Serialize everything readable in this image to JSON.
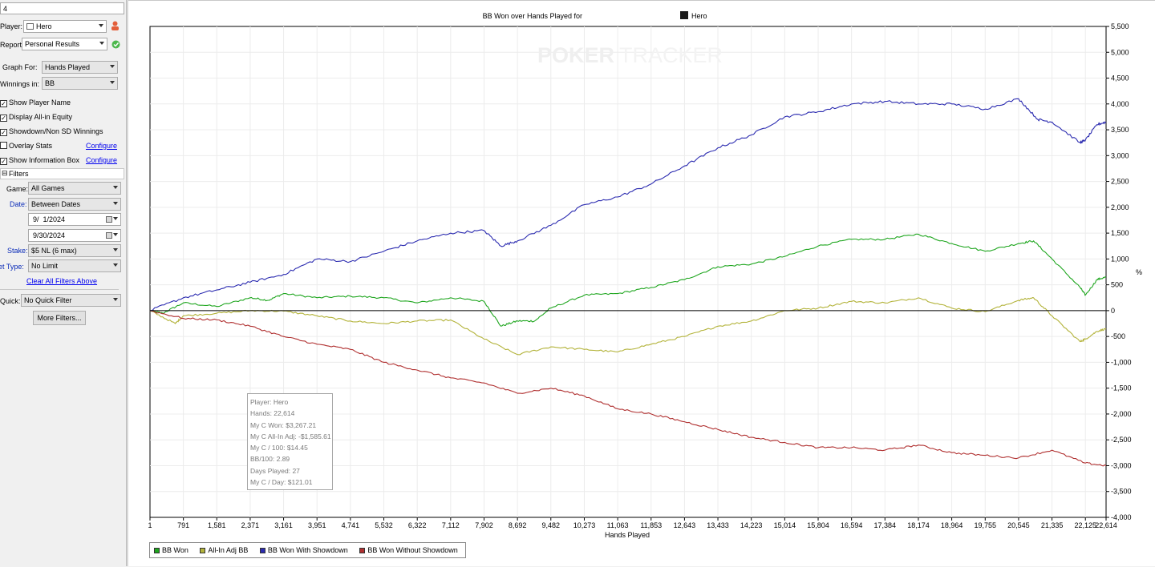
{
  "panel": {
    "search_value": "4",
    "player_label": "Player:",
    "player_value": "Hero",
    "report_label": "Report:",
    "report_value": "Personal Results",
    "graph_for_label": "Graph For:",
    "graph_for_value": "Hands Played",
    "winnings_in_label": "Winnings in:",
    "winnings_in_value": "BB",
    "checkboxes": [
      {
        "label": "Show Player Name",
        "checked": true
      },
      {
        "label": "Display All-in Equity",
        "checked": true
      },
      {
        "label": "Showdown/Non SD Winnings",
        "checked": true
      },
      {
        "label": "Overlay Stats",
        "checked": false
      },
      {
        "label": "Show Information Box",
        "checked": true
      }
    ],
    "configure_link": "Configure",
    "filters_header": "Filters",
    "game_label": "Game:",
    "game_value": "All Games",
    "date_label": "Date:",
    "date_value": "Between Dates",
    "date_from": "9/  1/2024",
    "date_to": "9/30/2024",
    "stake_label": "Stake:",
    "stake_value": "$5 NL (6 max)",
    "bet_type_label": "Bet Type:",
    "bet_type_value": "No Limit",
    "clear_filters_link": "Clear All Filters Above",
    "quick_label": "Quick:",
    "quick_value": "No Quick Filter",
    "more_filters_button": "More Filters..."
  },
  "chart_data": {
    "type": "line",
    "title_prefix": "BB Won over Hands Played for",
    "title_player": "Hero",
    "watermark_a": "POKER",
    "watermark_b": "TRACKER",
    "xlabel": "Hands Played",
    "ylabel": "%",
    "xlim": [
      1,
      22614
    ],
    "ylim": [
      -4000,
      5500
    ],
    "x_ticks": [
      "1",
      "791",
      "1,581",
      "2,371",
      "3,161",
      "3,951",
      "4,741",
      "5,532",
      "6,322",
      "7,112",
      "7,902",
      "8,692",
      "9,482",
      "10,273",
      "11,063",
      "11,853",
      "12,643",
      "13,433",
      "14,223",
      "15,014",
      "15,804",
      "16,594",
      "17,384",
      "18,174",
      "18,964",
      "19,755",
      "20,545",
      "21,335",
      "22,125",
      "22,614"
    ],
    "x_tick_values": [
      1,
      791,
      1581,
      2371,
      3161,
      3951,
      4741,
      5532,
      6322,
      7112,
      7902,
      8692,
      9482,
      10273,
      11063,
      11853,
      12643,
      13433,
      14223,
      15014,
      15804,
      16594,
      17384,
      18174,
      18964,
      19755,
      20545,
      21335,
      22125,
      22614
    ],
    "y_ticks": [
      5500,
      5000,
      4500,
      4000,
      3500,
      3000,
      2500,
      2000,
      1500,
      1000,
      500,
      0,
      -500,
      -1000,
      -1500,
      -2000,
      -2500,
      -3000,
      -3500,
      -4000
    ],
    "y_tick_labels": [
      "5,500",
      "5,000",
      "4,500",
      "4,000",
      "3,500",
      "3,000",
      "2,500",
      "2,000",
      "1,500",
      "1,000",
      "500",
      "0",
      "-500",
      "-1,000",
      "-1,500",
      "-2,000",
      "-2,500",
      "-3,000",
      "-3,500",
      "-4,000"
    ],
    "grid": true,
    "legend_position": "bottom-left",
    "series": [
      {
        "name": "BB Won",
        "color": "#1fa61f",
        "points": [
          [
            1,
            0
          ],
          [
            300,
            -50
          ],
          [
            791,
            150
          ],
          [
            1581,
            80
          ],
          [
            2371,
            250
          ],
          [
            2800,
            200
          ],
          [
            3161,
            330
          ],
          [
            3951,
            250
          ],
          [
            4741,
            280
          ],
          [
            5532,
            250
          ],
          [
            6322,
            150
          ],
          [
            7112,
            250
          ],
          [
            7902,
            180
          ],
          [
            8300,
            -300
          ],
          [
            8692,
            -200
          ],
          [
            9100,
            -200
          ],
          [
            9482,
            50
          ],
          [
            10273,
            300
          ],
          [
            11063,
            330
          ],
          [
            11853,
            450
          ],
          [
            12643,
            600
          ],
          [
            13433,
            850
          ],
          [
            14223,
            900
          ],
          [
            15014,
            1050
          ],
          [
            15804,
            1250
          ],
          [
            16594,
            1380
          ],
          [
            17384,
            1380
          ],
          [
            18174,
            1480
          ],
          [
            18964,
            1300
          ],
          [
            19755,
            1150
          ],
          [
            20545,
            1300
          ],
          [
            20900,
            1350
          ],
          [
            21335,
            1000
          ],
          [
            22000,
            450
          ],
          [
            22125,
            300
          ],
          [
            22400,
            600
          ],
          [
            22614,
            650
          ]
        ]
      },
      {
        "name": "All-In Adj BB",
        "color": "#b3b33a",
        "points": [
          [
            1,
            0
          ],
          [
            600,
            -250
          ],
          [
            791,
            -100
          ],
          [
            1581,
            -50
          ],
          [
            2371,
            0
          ],
          [
            3161,
            -10
          ],
          [
            3951,
            -100
          ],
          [
            4741,
            -200
          ],
          [
            5532,
            -250
          ],
          [
            6322,
            -200
          ],
          [
            7112,
            -180
          ],
          [
            7902,
            -550
          ],
          [
            8692,
            -850
          ],
          [
            9482,
            -700
          ],
          [
            10273,
            -750
          ],
          [
            11063,
            -800
          ],
          [
            11853,
            -650
          ],
          [
            12643,
            -500
          ],
          [
            13433,
            -300
          ],
          [
            14223,
            -200
          ],
          [
            15014,
            0
          ],
          [
            15804,
            50
          ],
          [
            16594,
            180
          ],
          [
            17384,
            150
          ],
          [
            18174,
            250
          ],
          [
            18964,
            50
          ],
          [
            19755,
            -20
          ],
          [
            20545,
            200
          ],
          [
            20900,
            250
          ],
          [
            21335,
            -100
          ],
          [
            22000,
            -600
          ],
          [
            22125,
            -550
          ],
          [
            22400,
            -400
          ],
          [
            22614,
            -350
          ]
        ]
      },
      {
        "name": "BB Won With Showdown",
        "color": "#2b2bb0",
        "points": [
          [
            1,
            0
          ],
          [
            791,
            250
          ],
          [
            1581,
            400
          ],
          [
            2371,
            550
          ],
          [
            3161,
            700
          ],
          [
            3951,
            1000
          ],
          [
            4741,
            950
          ],
          [
            5532,
            1150
          ],
          [
            6322,
            1350
          ],
          [
            7112,
            1500
          ],
          [
            7902,
            1550
          ],
          [
            8300,
            1250
          ],
          [
            8692,
            1350
          ],
          [
            9482,
            1650
          ],
          [
            10273,
            2050
          ],
          [
            11063,
            2200
          ],
          [
            11853,
            2450
          ],
          [
            12643,
            2800
          ],
          [
            13433,
            3150
          ],
          [
            14223,
            3400
          ],
          [
            15014,
            3750
          ],
          [
            15804,
            3850
          ],
          [
            16594,
            4000
          ],
          [
            17384,
            4050
          ],
          [
            18174,
            4000
          ],
          [
            18964,
            4000
          ],
          [
            19755,
            3900
          ],
          [
            20545,
            4100
          ],
          [
            21000,
            3700
          ],
          [
            21335,
            3650
          ],
          [
            22000,
            3250
          ],
          [
            22125,
            3300
          ],
          [
            22400,
            3600
          ],
          [
            22614,
            3650
          ]
        ]
      },
      {
        "name": "BB Won Without Showdown",
        "color": "#b03030",
        "points": [
          [
            1,
            0
          ],
          [
            791,
            -150
          ],
          [
            1581,
            -180
          ],
          [
            2371,
            -300
          ],
          [
            3161,
            -500
          ],
          [
            3951,
            -650
          ],
          [
            4741,
            -750
          ],
          [
            5532,
            -1000
          ],
          [
            6322,
            -1150
          ],
          [
            7112,
            -1300
          ],
          [
            7902,
            -1400
          ],
          [
            8692,
            -1600
          ],
          [
            9482,
            -1500
          ],
          [
            10273,
            -1650
          ],
          [
            11063,
            -1900
          ],
          [
            11853,
            -2000
          ],
          [
            12643,
            -2150
          ],
          [
            13433,
            -2300
          ],
          [
            14223,
            -2450
          ],
          [
            15014,
            -2550
          ],
          [
            15804,
            -2650
          ],
          [
            16594,
            -2650
          ],
          [
            17384,
            -2700
          ],
          [
            18174,
            -2600
          ],
          [
            18964,
            -2750
          ],
          [
            19755,
            -2800
          ],
          [
            20545,
            -2850
          ],
          [
            21335,
            -2700
          ],
          [
            22125,
            -2950
          ],
          [
            22614,
            -3000
          ]
        ]
      }
    ]
  },
  "info_box": {
    "player": "Player: Hero",
    "hands": "Hands: 22,614",
    "won": "My C Won: $3,267.21",
    "allin_adj": "My C All-In Adj: -$1,585.61",
    "per100": "My C / 100: $14.45",
    "bb100": "BB/100: 2.89",
    "days": "Days Played: 27",
    "per_day": "My C / Day: $121.01"
  },
  "legend": {
    "items": [
      {
        "label": "BB Won",
        "color": "#1fa61f"
      },
      {
        "label": "All-In Adj BB",
        "color": "#b3b33a"
      },
      {
        "label": "BB Won With Showdown",
        "color": "#2b2bb0"
      },
      {
        "label": "BB Won Without Showdown",
        "color": "#b03030"
      }
    ]
  }
}
